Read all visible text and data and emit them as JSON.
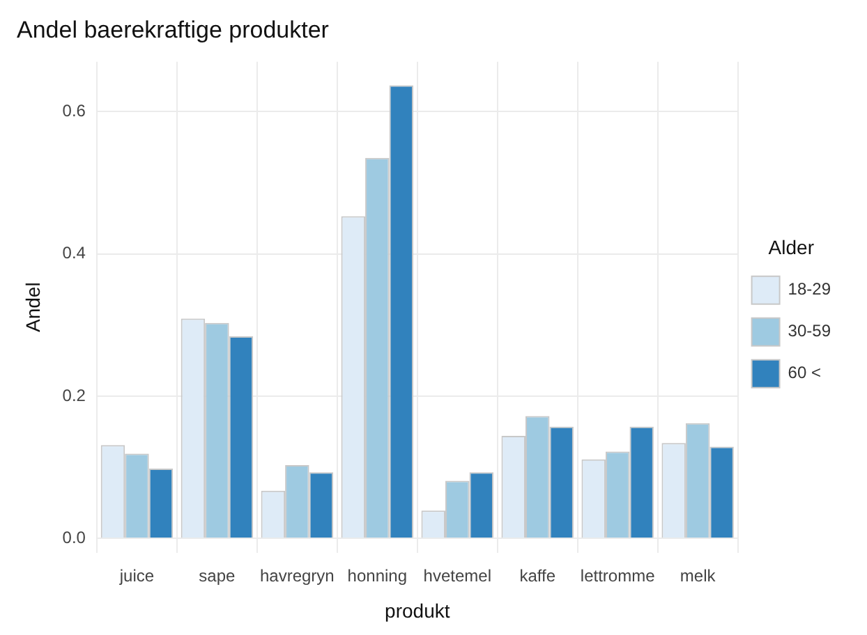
{
  "chart_data": {
    "type": "bar",
    "title": "Andel baerekraftige produkter",
    "xlabel": "produkt",
    "ylabel": "Andel",
    "legend_title": "Alder",
    "categories": [
      "juice",
      "sape",
      "havregryn",
      "honning",
      "hvetemel",
      "kaffe",
      "lettromme",
      "melk"
    ],
    "series": [
      {
        "name": "18-29",
        "color": "#deebf7",
        "values": [
          0.131,
          0.309,
          0.067,
          0.453,
          0.039,
          0.144,
          0.111,
          0.134
        ]
      },
      {
        "name": "30-59",
        "color": "#9ecae1",
        "values": [
          0.119,
          0.303,
          0.103,
          0.535,
          0.081,
          0.172,
          0.122,
          0.162
        ]
      },
      {
        "name": "60 <",
        "color": "#3182bd",
        "values": [
          0.098,
          0.284,
          0.093,
          0.637,
          0.093,
          0.157,
          0.157,
          0.129
        ]
      }
    ],
    "ylim": [
      -0.02,
      0.67
    ],
    "yticks": [
      {
        "value": 0,
        "label": "0.0"
      },
      {
        "value": 0.2,
        "label": "0.2"
      },
      {
        "value": 0.4,
        "label": "0.4"
      },
      {
        "value": 0.6,
        "label": "0.6"
      }
    ],
    "grid": true,
    "legend": "right"
  }
}
